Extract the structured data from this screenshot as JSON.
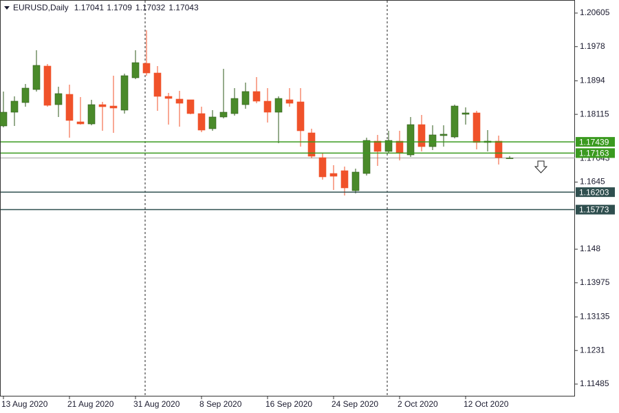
{
  "chart_data": {
    "type": "candlestick",
    "title": "EURUSD,Daily",
    "categories": [
      "13 Aug 2020",
      null,
      null,
      null,
      null,
      null,
      "21 Aug 2020",
      null,
      null,
      null,
      null,
      null,
      "31 Aug 2020",
      null,
      null,
      null,
      null,
      null,
      "8 Sep 2020",
      null,
      null,
      null,
      null,
      null,
      "16 Sep 2020",
      null,
      null,
      null,
      null,
      null,
      "24 Sep 2020",
      null,
      null,
      null,
      null,
      null,
      "2 Oct 2020",
      null,
      null,
      null,
      null,
      null,
      "12 Oct 2020",
      null,
      null,
      null,
      null
    ],
    "open": [
      1.1783,
      1.18168,
      1.18405,
      1.18726,
      1.19302,
      1.18354,
      1.18608,
      1.17931,
      1.1788,
      1.18354,
      1.1832,
      1.18219,
      1.19014,
      1.19369,
      1.19132,
      1.18557,
      1.1849,
      1.18473,
      1.18134,
      1.17762,
      1.1805,
      1.18134,
      1.18354,
      1.18676,
      1.18439,
      1.18168,
      1.18473,
      1.18422,
      1.1766,
      1.17051,
      1.16662,
      1.1673,
      1.16239,
      1.16662,
      1.17457,
      1.17204,
      1.17457,
      1.17119,
      1.17863,
      1.17322,
      1.17593,
      1.17559,
      1.18117,
      1.18151,
      1.17424,
      1.17457,
      1.17041
    ],
    "high": [
      1.18676,
      1.18557,
      1.18862,
      1.19691,
      1.19352,
      1.18794,
      1.18845,
      1.1854,
      1.18473,
      1.18422,
      1.19065,
      1.19116,
      1.19691,
      1.20182,
      1.19302,
      1.18642,
      1.18693,
      1.18473,
      1.18303,
      1.18219,
      1.19234,
      1.1876,
      1.18896,
      1.19031,
      1.1876,
      1.18557,
      1.1876,
      1.1876,
      1.17762,
      1.17153,
      1.16865,
      1.16831,
      1.16781,
      1.17542,
      1.1761,
      1.17711,
      1.17711,
      1.1805,
      1.181,
      1.17847,
      1.17847,
      1.18354,
      1.18286,
      1.18202,
      1.17728,
      1.17593,
      1.1709
    ],
    "low": [
      1.17796,
      1.1783,
      1.18303,
      1.18676,
      1.18303,
      1.1805,
      1.17542,
      1.17863,
      1.17847,
      1.17711,
      1.1766,
      1.18134,
      1.1898,
      1.19065,
      1.18202,
      1.17863,
      1.17813,
      1.18117,
      1.17677,
      1.17711,
      1.18016,
      1.18083,
      1.18253,
      1.18388,
      1.17914,
      1.17407,
      1.18303,
      1.17322,
      1.17034,
      1.1651,
      1.16256,
      1.16121,
      1.16171,
      1.16611,
      1.16848,
      1.17153,
      1.16984,
      1.17068,
      1.17204,
      1.17237,
      1.17322,
      1.17525,
      1.17863,
      1.17254,
      1.17204,
      1.16882,
      1.17032
    ],
    "close": [
      1.18168,
      1.18439,
      1.1876,
      1.19319,
      1.18337,
      1.18625,
      1.17965,
      1.1788,
      1.18354,
      1.18303,
      1.1827,
      1.19065,
      1.19386,
      1.19132,
      1.18557,
      1.18506,
      1.18388,
      1.18134,
      1.17728,
      1.1805,
      1.18168,
      1.18506,
      1.18676,
      1.18439,
      1.18168,
      1.18506,
      1.18388,
      1.17711,
      1.17085,
      1.16578,
      1.16594,
      1.16307,
      1.16696,
      1.17474,
      1.17204,
      1.17474,
      1.1717,
      1.17863,
      1.17322,
      1.1761,
      1.17627,
      1.1832,
      1.18151,
      1.17424,
      1.17457,
      1.17051,
      1.17043
    ],
    "up_color": "#4a8a2a",
    "down_color": "#f0522a",
    "ylim": [
      1.1118,
      1.20926
    ],
    "yticks": [
      1.20605,
      1.1978,
      1.1894,
      1.18115,
      1.1645,
      1.148,
      1.13975,
      1.13135,
      1.1231,
      1.11485
    ],
    "current_price": {
      "value": 1.17043,
      "color": "#a0a0a0"
    },
    "levels": [
      {
        "value": 1.17439,
        "color": "#3a9a1f"
      },
      {
        "value": 1.17163,
        "color": "#3a9a1f"
      },
      {
        "value": 1.16203,
        "color": "#2f4f4f"
      },
      {
        "value": 1.15773,
        "color": "#2f4f4f"
      }
    ]
  }
}
